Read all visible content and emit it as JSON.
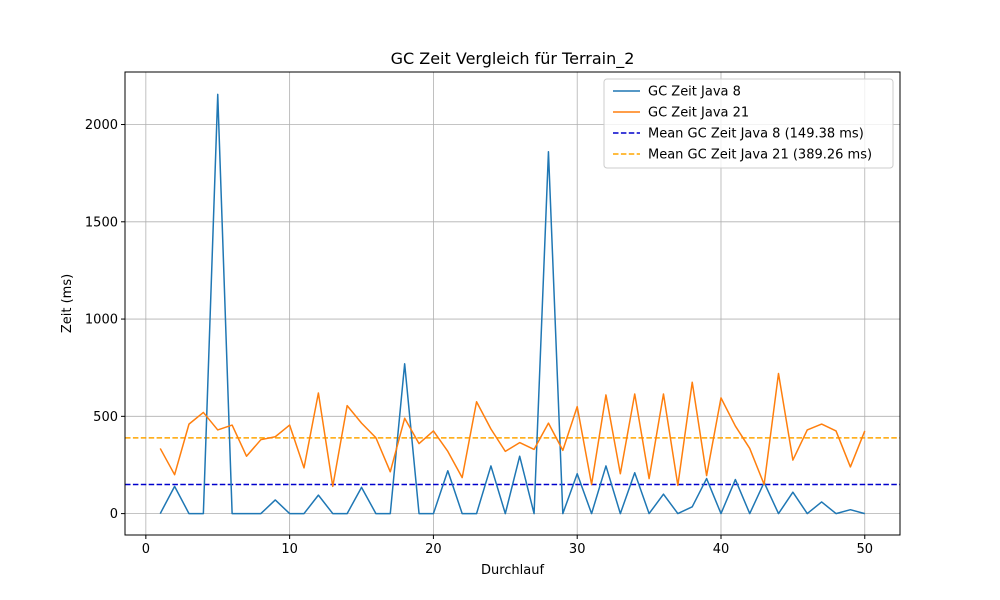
{
  "chart_data": {
    "type": "line",
    "title": "GC Zeit Vergleich für Terrain_2",
    "xlabel": "Durchlauf",
    "ylabel": "Zeit (ms)",
    "xlim": [
      -1.45,
      52.45
    ],
    "ylim": [
      -110,
      2270
    ],
    "xticks": [
      0,
      10,
      20,
      30,
      40,
      50
    ],
    "yticks": [
      0,
      500,
      1000,
      1500,
      2000
    ],
    "grid": true,
    "legend_position": "top-right",
    "x": [
      1,
      2,
      3,
      4,
      5,
      6,
      7,
      8,
      9,
      10,
      11,
      12,
      13,
      14,
      15,
      16,
      17,
      18,
      19,
      20,
      21,
      22,
      23,
      24,
      25,
      26,
      27,
      28,
      29,
      30,
      31,
      32,
      33,
      34,
      35,
      36,
      37,
      38,
      39,
      40,
      41,
      42,
      43,
      44,
      45,
      46,
      47,
      48,
      49,
      50
    ],
    "series": [
      {
        "name": "GC Zeit Java 8",
        "color": "#1f77b4",
        "style": "solid",
        "values": [
          0,
          140,
          0,
          0,
          2155,
          0,
          0,
          0,
          70,
          0,
          0,
          95,
          0,
          0,
          135,
          0,
          0,
          770,
          0,
          0,
          220,
          0,
          0,
          245,
          0,
          295,
          0,
          1860,
          0,
          205,
          0,
          245,
          0,
          210,
          0,
          100,
          0,
          35,
          180,
          0,
          175,
          0,
          160,
          0,
          110,
          0,
          60,
          0,
          20,
          0
        ]
      },
      {
        "name": "GC Zeit Java 21",
        "color": "#ff7f0e",
        "style": "solid",
        "values": [
          335,
          200,
          460,
          520,
          430,
          455,
          295,
          380,
          395,
          455,
          235,
          620,
          140,
          555,
          465,
          390,
          215,
          490,
          360,
          425,
          320,
          185,
          575,
          435,
          320,
          365,
          330,
          465,
          325,
          550,
          150,
          610,
          205,
          615,
          180,
          615,
          145,
          675,
          195,
          595,
          450,
          335,
          150,
          720,
          275,
          430,
          460,
          425,
          240,
          425
        ]
      }
    ],
    "hlines": [
      {
        "name": "Mean GC Zeit Java 8 (149.38 ms)",
        "value": 149.38,
        "color": "#0000cc",
        "style": "dashed"
      },
      {
        "name": "Mean GC Zeit Java 21 (389.26 ms)",
        "value": 389.26,
        "color": "#ffa500",
        "style": "dashed"
      }
    ]
  }
}
